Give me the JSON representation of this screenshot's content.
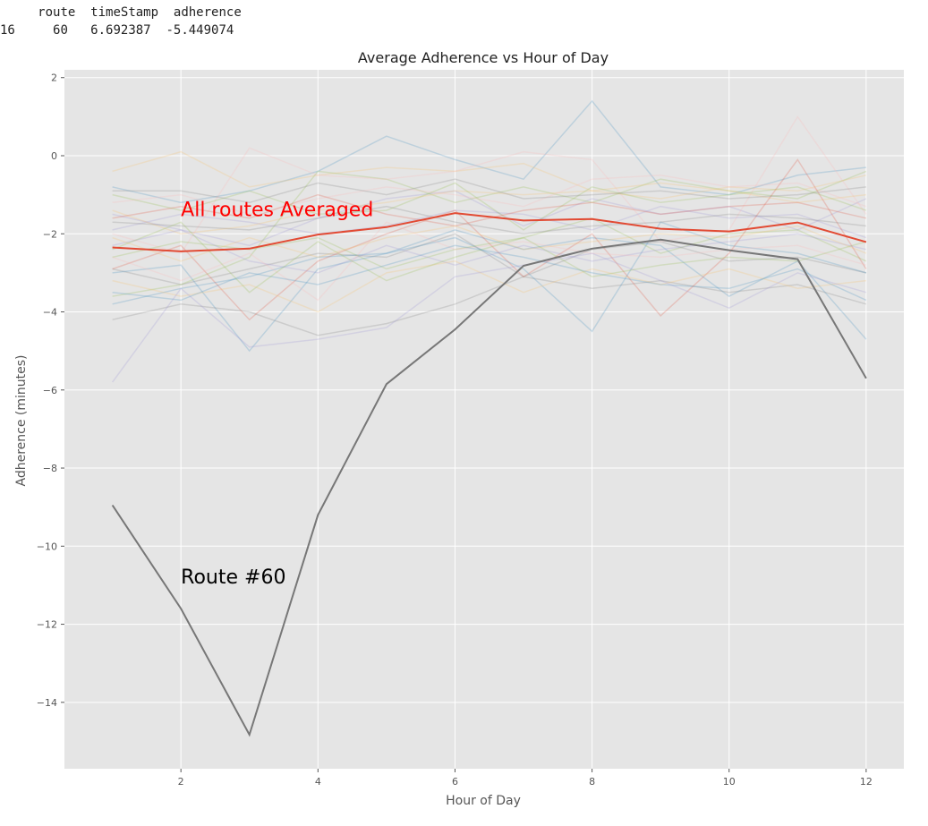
{
  "dataframe": {
    "columns": [
      "route",
      "timeStamp",
      "adherence"
    ],
    "rows": [
      {
        "index": "16",
        "route": "60",
        "timeStamp": "6.692387",
        "adherence": "-5.449074"
      }
    ]
  },
  "chart_data": {
    "type": "line",
    "title": "Average Adherence vs Hour of Day",
    "xlabel": "Hour of Day",
    "ylabel": "Adherence (minutes)",
    "xlim": [
      0.3,
      12.55
    ],
    "ylim": [
      -15.7,
      2.2
    ],
    "xticks": [
      2,
      4,
      6,
      8,
      10,
      12
    ],
    "yticks": [
      2,
      0,
      -2,
      -4,
      -6,
      -8,
      -10,
      -12,
      -14
    ],
    "grid": true,
    "x": [
      1,
      2,
      3,
      4,
      5,
      6,
      7,
      8,
      9,
      10,
      11,
      12
    ],
    "series": [
      {
        "name": "All routes Averaged",
        "color": "#e24a33",
        "values": [
          -2.35,
          -2.45,
          -2.38,
          -2.02,
          -1.83,
          -1.47,
          -1.66,
          -1.62,
          -1.87,
          -1.94,
          -1.71,
          -2.21
        ]
      },
      {
        "name": "Route #60",
        "color": "#777777",
        "values": [
          -8.95,
          -11.6,
          -14.83,
          -9.2,
          -5.85,
          -4.45,
          -2.82,
          -2.38,
          -2.15,
          -2.42,
          -2.65,
          -5.7
        ]
      }
    ],
    "annotations": [
      {
        "text": "All routes Averaged",
        "x": 2,
        "y": -1.55,
        "color": "#ff0000"
      },
      {
        "text": "Route #60",
        "x": 2,
        "y": -10.95,
        "color": "#000000"
      }
    ],
    "background_series": [
      {
        "color": "#348abd",
        "values": [
          -0.8,
          -1.2,
          -0.9,
          -0.4,
          0.5,
          -0.1,
          -0.6,
          1.4,
          -0.8,
          -1.0,
          -0.5,
          -0.3
        ]
      },
      {
        "color": "#988ed5",
        "values": [
          -1.5,
          -1.9,
          -2.3,
          -1.6,
          -1.1,
          -0.9,
          -1.8,
          -1.1,
          -1.5,
          -1.3,
          -1.9,
          -1.1
        ]
      },
      {
        "color": "#777777",
        "values": [
          -2.9,
          -3.3,
          -2.9,
          -2.5,
          -2.6,
          -2.0,
          -3.1,
          -2.4,
          -2.2,
          -2.7,
          -2.6,
          -3.0
        ]
      },
      {
        "color": "#fbc15e",
        "values": [
          -0.4,
          0.1,
          -0.8,
          -0.5,
          -0.3,
          -0.4,
          -0.2,
          -0.9,
          -1.1,
          -0.8,
          -0.9,
          -0.5
        ]
      },
      {
        "color": "#8eba42",
        "values": [
          -3.6,
          -3.3,
          -2.6,
          -0.4,
          -0.6,
          -1.2,
          -0.8,
          -1.2,
          -0.6,
          -0.9,
          -1.1,
          -0.4
        ]
      },
      {
        "color": "#ffb5b8",
        "values": [
          -2.0,
          -2.5,
          0.2,
          -0.5,
          -0.6,
          -0.4,
          0.1,
          -0.1,
          -2.2,
          -1.9,
          1.0,
          -1.5
        ]
      },
      {
        "color": "#348abd",
        "values": [
          -3.0,
          -2.8,
          -5.0,
          -2.9,
          -2.5,
          -1.9,
          -2.4,
          -2.1,
          -2.3,
          -3.6,
          -2.7,
          -4.7
        ]
      },
      {
        "color": "#988ed5",
        "values": [
          -1.9,
          -1.5,
          -1.7,
          -2.0,
          -1.8,
          -1.4,
          -1.5,
          -1.9,
          -1.3,
          -1.6,
          -1.5,
          -2.1
        ]
      },
      {
        "color": "#777777",
        "values": [
          -4.2,
          -3.8,
          -4.0,
          -4.6,
          -4.3,
          -3.8,
          -3.1,
          -3.4,
          -3.2,
          -3.5,
          -3.3,
          -3.8
        ]
      },
      {
        "color": "#fbc15e",
        "values": [
          -1.4,
          -2.0,
          -1.8,
          -1.4,
          -1.2,
          -0.9,
          -1.0,
          -0.9,
          -0.7,
          -0.9,
          -1.2,
          -1.0
        ]
      },
      {
        "color": "#8eba42",
        "values": [
          -2.6,
          -2.2,
          -2.4,
          -2.1,
          -2.9,
          -2.4,
          -2.1,
          -1.6,
          -2.5,
          -2.0,
          -1.9,
          -2.7
        ]
      },
      {
        "color": "#ffb5b8",
        "values": [
          -1.2,
          -1.0,
          -1.5,
          -1.1,
          -0.8,
          -1.0,
          -1.3,
          -0.6,
          -0.5,
          -0.8,
          -0.7,
          -1.3
        ]
      },
      {
        "color": "#e24a33",
        "values": [
          -2.9,
          -2.3,
          -4.2,
          -2.7,
          -2.0,
          -1.4,
          -3.1,
          -2.0,
          -4.1,
          -2.5,
          -0.1,
          -2.9
        ]
      },
      {
        "color": "#348abd",
        "values": [
          -3.8,
          -3.4,
          -3.1,
          -2.6,
          -2.5,
          -2.1,
          -2.9,
          -4.5,
          -1.7,
          -2.3,
          -2.5,
          -3.0
        ]
      },
      {
        "color": "#988ed5",
        "values": [
          -2.3,
          -1.9,
          -2.7,
          -3.0,
          -2.3,
          -2.8,
          -2.3,
          -2.7,
          -2.4,
          -2.2,
          -2.0,
          -2.4
        ]
      },
      {
        "color": "#777777",
        "values": [
          -1.7,
          -1.8,
          -1.9,
          -1.6,
          -1.3,
          -1.7,
          -2.0,
          -1.8,
          -1.7,
          -1.5,
          -1.6,
          -1.8
        ]
      },
      {
        "color": "#fbc15e",
        "values": [
          -3.2,
          -3.6,
          -3.3,
          -4.0,
          -3.0,
          -2.7,
          -3.5,
          -2.9,
          -3.3,
          -2.9,
          -3.4,
          -3.2
        ]
      },
      {
        "color": "#8eba42",
        "values": [
          -1.0,
          -1.4,
          -0.9,
          -1.5,
          -1.4,
          -0.7,
          -1.9,
          -0.8,
          -1.2,
          -1.0,
          -0.8,
          -1.4
        ]
      },
      {
        "color": "#ffb5b8",
        "values": [
          -2.6,
          -3.2,
          -2.5,
          -3.7,
          -1.7,
          -2.4,
          -2.2,
          -2.5,
          -2.6,
          -2.4,
          -2.3,
          -2.8
        ]
      },
      {
        "color": "#348abd",
        "values": [
          -3.5,
          -3.7,
          -3.0,
          -3.3,
          -2.8,
          -2.3,
          -2.6,
          -3.0,
          -3.3,
          -3.4,
          -2.9,
          -3.7
        ]
      },
      {
        "color": "#e24a33",
        "values": [
          -1.6,
          -1.3,
          -1.6,
          -1.0,
          -1.5,
          -1.8,
          -1.4,
          -1.2,
          -1.5,
          -1.3,
          -1.2,
          -1.6
        ]
      },
      {
        "color": "#988ed5",
        "values": [
          -5.8,
          -3.4,
          -4.9,
          -4.7,
          -4.4,
          -3.1,
          -2.8,
          -2.5,
          -3.2,
          -3.9,
          -3.0,
          -3.5
        ]
      },
      {
        "color": "#fbc15e",
        "values": [
          -2.1,
          -2.7,
          -2.1,
          -2.6,
          -2.1,
          -1.8,
          -2.4,
          -2.2,
          -2.0,
          -2.1,
          -1.8,
          -2.5
        ]
      },
      {
        "color": "#8eba42",
        "values": [
          -2.4,
          -1.7,
          -3.5,
          -2.2,
          -3.2,
          -2.6,
          -2.1,
          -3.1,
          -2.8,
          -2.6,
          -2.7,
          -2.2
        ]
      },
      {
        "color": "#777777",
        "values": [
          -0.9,
          -0.9,
          -1.2,
          -0.7,
          -1.0,
          -0.6,
          -1.1,
          -1.0,
          -0.9,
          -1.1,
          -1.0,
          -0.8
        ]
      }
    ]
  }
}
